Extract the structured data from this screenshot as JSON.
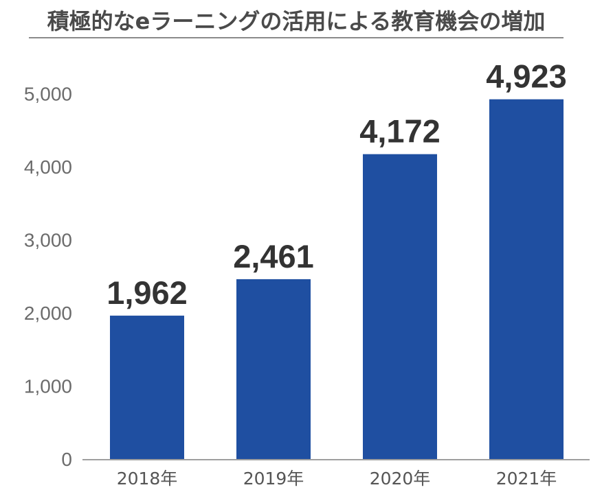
{
  "header": {
    "title": "積極的なeラーニングの活用による教育機会の増加"
  },
  "colors": {
    "bar": "#1f4fa1",
    "axis": "#9e9e9e",
    "title_rule": "#8a8a8a"
  },
  "chart_data": {
    "type": "bar",
    "title": "積極的なeラーニングの活用による教育機会の増加",
    "categories": [
      "2018年",
      "2019年",
      "2020年",
      "2021年"
    ],
    "values": [
      1962,
      2461,
      4172,
      4923
    ],
    "data_labels": [
      "1,962",
      "2,461",
      "4,172",
      "4,923"
    ],
    "yticks": [
      0,
      1000,
      2000,
      3000,
      4000,
      5000
    ],
    "ytick_labels": [
      "0",
      "1,000",
      "2,000",
      "3,000",
      "4,000",
      "5,000"
    ],
    "ylim": [
      0,
      5000
    ],
    "xlabel": "",
    "ylabel": "",
    "grid": false,
    "legend": false
  }
}
